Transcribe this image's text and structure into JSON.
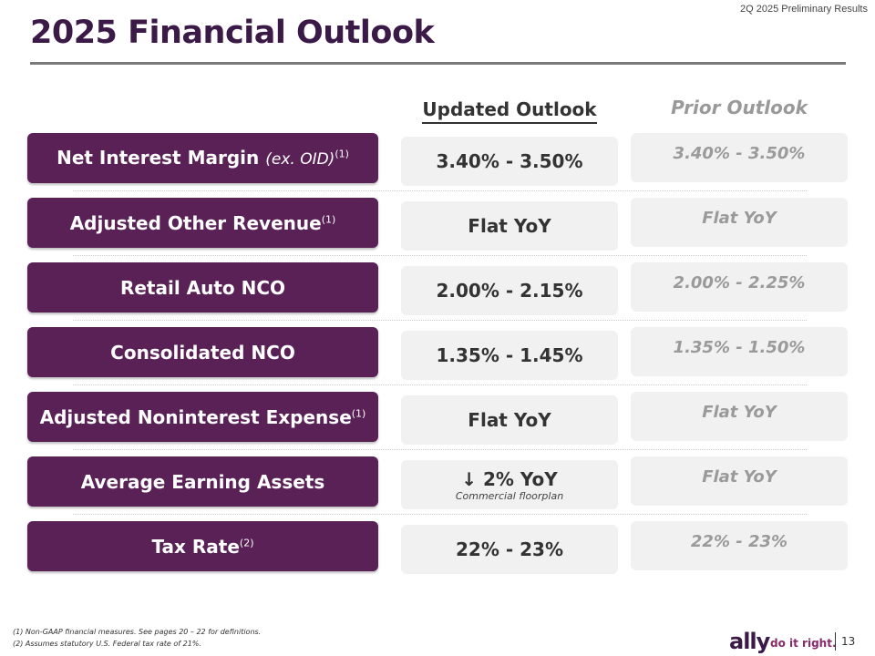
{
  "header": {
    "report": "2Q 2025 Preliminary Results",
    "title": "2025 Financial Outlook"
  },
  "columns": {
    "updated": "Updated Outlook",
    "prior": "Prior Outlook"
  },
  "rows": [
    {
      "label": "Net Interest Margin",
      "label_note": "(ex. OID)",
      "sup": "(1)",
      "updated": "3.40% - 3.50%",
      "prior": "3.40% - 3.50%"
    },
    {
      "label": "Adjusted Other Revenue",
      "sup": "(1)",
      "updated": "Flat YoY",
      "prior": "Flat YoY"
    },
    {
      "label": "Retail Auto NCO",
      "updated": "2.00% - 2.15%",
      "prior": "2.00% - 2.25%"
    },
    {
      "label": "Consolidated NCO",
      "updated": "1.35% - 1.45%",
      "prior": "1.35% - 1.50%"
    },
    {
      "label": "Adjusted Noninterest Expense",
      "sup": "(1)",
      "updated": "Flat YoY",
      "prior": "Flat YoY"
    },
    {
      "label": "Average Earning Assets",
      "updated": "↓ 2% YoY",
      "updated_sub": "Commercial floorplan",
      "prior": "Flat YoY"
    },
    {
      "label": "Tax Rate",
      "sup": "(2)",
      "updated": "22% - 23%",
      "prior": "22% - 23%"
    }
  ],
  "footnotes": [
    "(1)   Non-GAAP financial measures. See pages 20 – 22 for definitions.",
    "(2)   Assumes statutory U.S. Federal tax rate of 21%."
  ],
  "footer": {
    "logo": "ally",
    "tagline": "do it right.",
    "page": "13"
  }
}
